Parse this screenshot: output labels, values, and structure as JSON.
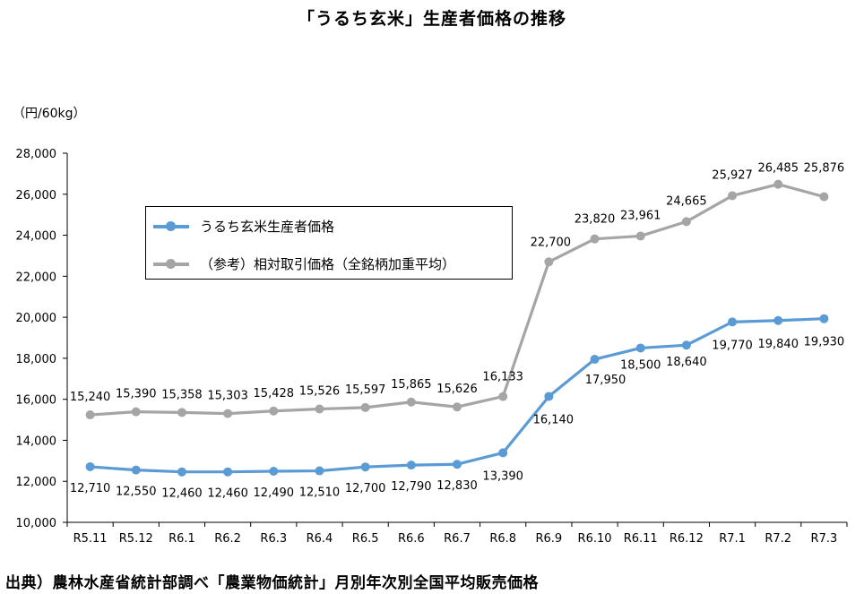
{
  "title": "「うるち玄米」生産者価格の推移",
  "unit_label": "（円/60kg）",
  "source": "出典）農林水産省統計部調べ「農業物価統計」月別年次別全国平均販売価格",
  "chart_data": {
    "type": "line",
    "title": "「うるち玄米」生産者価格の推移",
    "xlabel": "",
    "ylabel": "（円/60kg）",
    "ylim": [
      10000,
      28000
    ],
    "yticks": [
      10000,
      12000,
      14000,
      16000,
      18000,
      20000,
      22000,
      24000,
      26000,
      28000
    ],
    "ytick_labels": [
      "10,000",
      "12,000",
      "14,000",
      "16,000",
      "18,000",
      "20,000",
      "22,000",
      "24,000",
      "26,000",
      "28,000"
    ],
    "grid": false,
    "legend_position": "upper-left",
    "categories": [
      "R5.11",
      "R5.12",
      "R6.1",
      "R6.2",
      "R6.3",
      "R6.4",
      "R6.5",
      "R6.6",
      "R6.7",
      "R6.8",
      "R6.9",
      "R6.10",
      "R6.11",
      "R6.12",
      "R7.1",
      "R7.2",
      "R7.3"
    ],
    "series": [
      {
        "name": "うるち玄米生産者価格",
        "color": "#5b9bd5",
        "values": [
          12710,
          12550,
          12460,
          12460,
          12490,
          12510,
          12700,
          12790,
          12830,
          13390,
          16140,
          17950,
          18500,
          18640,
          19770,
          19840,
          19930
        ],
        "labels": [
          "12,710",
          "12,550",
          "12,460",
          "12,460",
          "12,490",
          "12,510",
          "12,700",
          "12,790",
          "12,830",
          "13,390",
          "16,140",
          "17,950",
          "18,500",
          "18,640",
          "19,770",
          "19,840",
          "19,930"
        ]
      },
      {
        "name": "（参考）相対取引価格（全銘柄加重平均）",
        "color": "#a5a5a5",
        "values": [
          15240,
          15390,
          15358,
          15303,
          15428,
          15526,
          15597,
          15865,
          15626,
          16133,
          22700,
          23820,
          23961,
          24665,
          25927,
          26485,
          25876
        ],
        "labels": [
          "15,240",
          "15,390",
          "15,358",
          "15,303",
          "15,428",
          "15,526",
          "15,597",
          "15,865",
          "15,626",
          "16,133",
          "22,700",
          "23,820",
          "23,961",
          "24,665",
          "25,927",
          "26,485",
          "25,876"
        ]
      }
    ]
  }
}
